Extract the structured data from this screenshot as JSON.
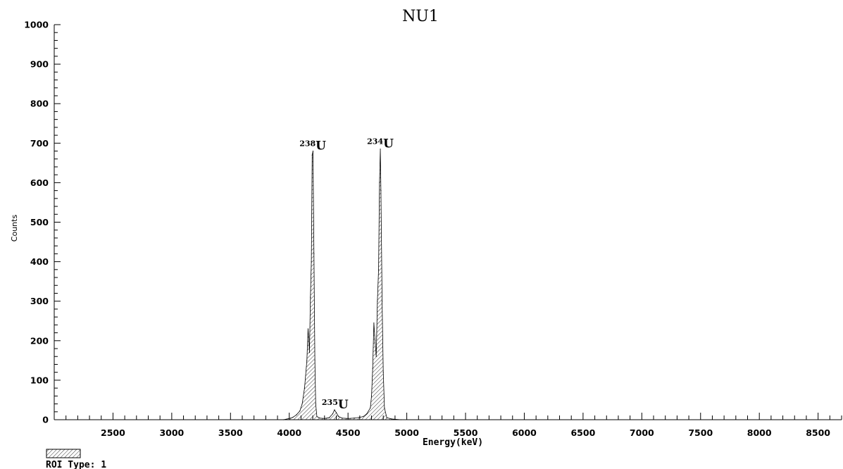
{
  "chart_data": {
    "type": "area",
    "title": "NU1",
    "xlabel": "Energy(keV)",
    "ylabel": "Counts",
    "xlim": [
      2000,
      8700
    ],
    "ylim": [
      0,
      1000
    ],
    "x_ticks": [
      2500,
      3000,
      3500,
      4000,
      4500,
      5000,
      5500,
      6000,
      6500,
      7000,
      7500,
      8000,
      8500
    ],
    "y_ticks": [
      0,
      100,
      200,
      300,
      400,
      500,
      600,
      700,
      800,
      900,
      1000
    ],
    "grid": false,
    "fill": "hatched",
    "series": [
      {
        "x": [
          3950,
          4000,
          4030,
          4060,
          4090,
          4110,
          4130,
          4150,
          4160,
          4165,
          4172,
          4180,
          4188,
          4195,
          4202,
          4210,
          4218,
          4225,
          4235,
          4260,
          4300,
          4340,
          4370,
          4385,
          4400,
          4420,
          4450,
          4500,
          4550,
          4600,
          4630,
          4660,
          4690,
          4700,
          4710,
          4720,
          4730,
          4740,
          4750,
          4760,
          4768,
          4775,
          4780,
          4790,
          4800,
          4810,
          4830,
          4870,
          4950
        ],
        "y": [
          0,
          3,
          6,
          12,
          22,
          40,
          80,
          150,
          230,
          210,
          170,
          310,
          400,
          670,
          680,
          420,
          150,
          40,
          8,
          4,
          3,
          5,
          15,
          25,
          18,
          8,
          4,
          3,
          4,
          6,
          8,
          15,
          30,
          60,
          130,
          245,
          200,
          160,
          300,
          380,
          600,
          685,
          580,
          300,
          120,
          30,
          5,
          2,
          0
        ]
      }
    ],
    "annotations": [
      {
        "mass": "238",
        "symbol": "U",
        "x": 4200,
        "y": 680
      },
      {
        "mass": "235",
        "symbol": "U",
        "x": 4390,
        "y": 25
      },
      {
        "mass": "234",
        "symbol": "U",
        "x": 4775,
        "y": 685
      }
    ]
  },
  "legend": {
    "label": "ROI Type: 1"
  }
}
